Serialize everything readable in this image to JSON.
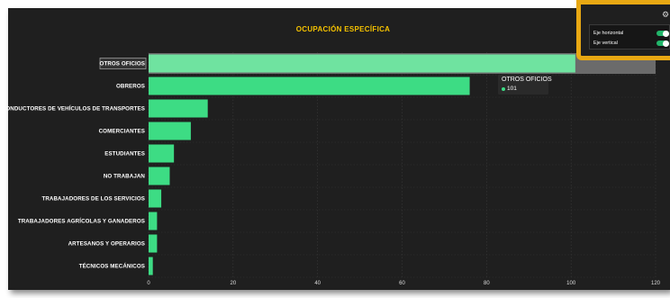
{
  "chart_data": {
    "type": "bar",
    "orientation": "horizontal",
    "title": "OCUPACIÓN ESPECÍFICA",
    "categories": [
      "OTROS OFICIOS",
      "OBREROS",
      "CONDUCTORES DE VEHÍCULOS DE TRANSPORTES",
      "COMERCIANTES",
      "ESTUDIANTES",
      "NO TRABAJAN",
      "TRABAJADORES DE LOS SERVICIOS",
      "TRABAJADORES AGRÍCOLAS Y GANADEROS",
      "ARTESANOS Y OPERARIOS",
      "TÉCNICOS MECÁNICOS"
    ],
    "values": [
      101,
      76,
      14,
      10,
      6,
      5,
      3,
      2,
      2,
      1
    ],
    "xlim": [
      0,
      120
    ],
    "x_ticks": [
      "0",
      "20",
      "40",
      "60",
      "80",
      "100",
      "120"
    ],
    "grid": true,
    "highlighted_category": "OTROS OFICIOS",
    "colors": {
      "bar": "#3ddc84",
      "bar_highlight": "#6fe3a0",
      "background": "#1f1f1f",
      "title": "#f5c200"
    }
  },
  "tooltip": {
    "title": "OTROS OFICIOS",
    "value": "101"
  },
  "settings": {
    "icon": "gear-icon",
    "toggles": [
      {
        "label": "Eje horizontal",
        "on": true
      },
      {
        "label": "Eje vertical",
        "on": true
      }
    ],
    "highlight_color": "#e8a813"
  }
}
